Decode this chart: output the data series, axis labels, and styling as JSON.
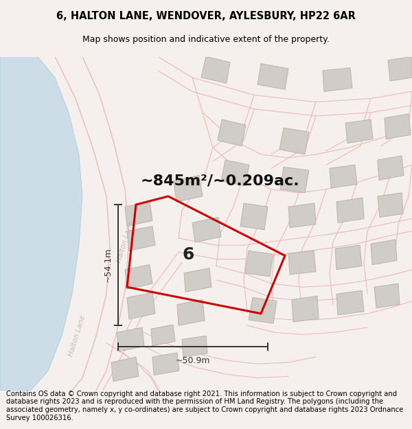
{
  "title": "6, HALTON LANE, WENDOVER, AYLESBURY, HP22 6AR",
  "subtitle": "Map shows position and indicative extent of the property.",
  "area_text": "~845m²/~0.209ac.",
  "dim_vertical": "~54.1m",
  "dim_horizontal": "~50.9m",
  "label_number": "6",
  "halton_lane_label": "Halton Lane",
  "halton_lane_label2": "Halton Lane",
  "footer": "Contains OS data © Crown copyright and database right 2021. This information is subject to Crown copyright and database rights 2023 and is reproduced with the permission of HM Land Registry. The polygons (including the associated geometry, namely x, y co-ordinates) are subject to Crown copyright and database rights 2023 Ordnance Survey 100026316.",
  "bg_color": "#f5f0ee",
  "map_bg": "#ffffff",
  "road_color": "#f0b8b8",
  "highlight_color": "#cc0000",
  "highlight_fill": "none",
  "river_color": "#c8dce8",
  "dim_line_color": "#333333",
  "title_fontsize": 10.5,
  "subtitle_fontsize": 9,
  "area_fontsize": 16,
  "label_fontsize": 18,
  "footer_fontsize": 7.2,
  "road_label_color": "#c8baba"
}
